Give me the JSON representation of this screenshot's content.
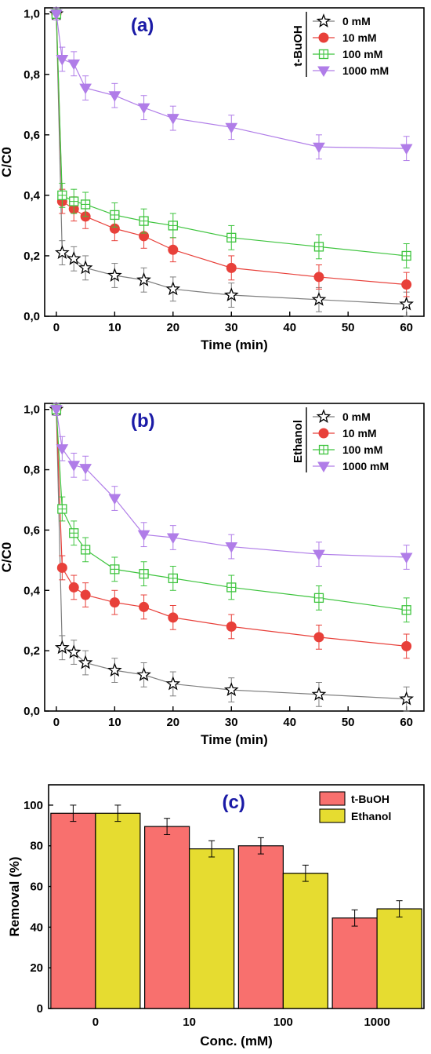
{
  "chart_data": [
    {
      "type": "line",
      "panel_label": "(a)",
      "xlabel": "Time (min)",
      "ylabel": "C/C0",
      "xlim": [
        -2,
        63
      ],
      "ylim": [
        0,
        1.02
      ],
      "xticks": [
        "0",
        "10",
        "20",
        "30",
        "40",
        "50",
        "60"
      ],
      "xtick_values": [
        0,
        10,
        20,
        30,
        40,
        50,
        60
      ],
      "yticks": [
        "0,0",
        "0,2",
        "0,4",
        "0,6",
        "0,8",
        "1,0"
      ],
      "ytick_values": [
        0,
        0.2,
        0.4,
        0.6,
        0.8,
        1.0
      ],
      "legend_group": "t-BuOH",
      "legend_position": "top-right",
      "grid": false,
      "x": [
        0,
        1,
        3,
        5,
        10,
        15,
        20,
        30,
        45,
        60
      ],
      "series": [
        {
          "name": "0 mM",
          "marker": "star",
          "color": "#000000",
          "line_color": "#7f7f7f",
          "values": [
            1.0,
            0.21,
            0.19,
            0.16,
            0.135,
            0.12,
            0.09,
            0.07,
            0.055,
            0.04
          ],
          "errors": [
            0.02,
            0.04,
            0.04,
            0.04,
            0.04,
            0.04,
            0.04,
            0.04,
            0.04,
            0.04
          ]
        },
        {
          "name": "10 mM",
          "marker": "circle",
          "color": "#e8403a",
          "line_color": "#e8403a",
          "values": [
            1.0,
            0.38,
            0.355,
            0.33,
            0.29,
            0.265,
            0.22,
            0.16,
            0.13,
            0.105
          ],
          "errors": [
            0.02,
            0.04,
            0.04,
            0.04,
            0.04,
            0.04,
            0.04,
            0.04,
            0.04,
            0.04
          ]
        },
        {
          "name": "100 mM",
          "marker": "square-cross",
          "color": "#3ec43e",
          "line_color": "#3ec43e",
          "values": [
            1.0,
            0.4,
            0.38,
            0.37,
            0.335,
            0.315,
            0.3,
            0.26,
            0.23,
            0.2
          ],
          "errors": [
            0.02,
            0.04,
            0.04,
            0.04,
            0.04,
            0.04,
            0.04,
            0.04,
            0.04,
            0.04
          ]
        },
        {
          "name": "1000 mM",
          "marker": "triangle-down",
          "color": "#b07de8",
          "line_color": "#b07de8",
          "values": [
            1.0,
            0.85,
            0.835,
            0.755,
            0.73,
            0.69,
            0.655,
            0.625,
            0.56,
            0.555
          ],
          "errors": [
            0.02,
            0.04,
            0.04,
            0.04,
            0.04,
            0.04,
            0.04,
            0.04,
            0.04,
            0.04
          ]
        }
      ]
    },
    {
      "type": "line",
      "panel_label": "(b)",
      "xlabel": "Time (min)",
      "ylabel": "C/C0",
      "xlim": [
        -2,
        63
      ],
      "ylim": [
        0,
        1.02
      ],
      "xticks": [
        "0",
        "10",
        "20",
        "30",
        "40",
        "50",
        "60"
      ],
      "xtick_values": [
        0,
        10,
        20,
        30,
        40,
        50,
        60
      ],
      "yticks": [
        "0,0",
        "0,2",
        "0,4",
        "0,6",
        "0,8",
        "1,0"
      ],
      "ytick_values": [
        0,
        0.2,
        0.4,
        0.6,
        0.8,
        1.0
      ],
      "legend_group": "Ethanol",
      "legend_position": "top-right",
      "grid": false,
      "x": [
        0,
        1,
        3,
        5,
        10,
        15,
        20,
        30,
        45,
        60
      ],
      "series": [
        {
          "name": "0 mM",
          "marker": "star",
          "color": "#000000",
          "line_color": "#7f7f7f",
          "values": [
            1.0,
            0.21,
            0.195,
            0.16,
            0.135,
            0.12,
            0.09,
            0.07,
            0.055,
            0.04
          ],
          "errors": [
            0.02,
            0.04,
            0.04,
            0.04,
            0.04,
            0.04,
            0.04,
            0.04,
            0.04,
            0.04
          ]
        },
        {
          "name": "10 mM",
          "marker": "circle",
          "color": "#e8403a",
          "line_color": "#e8403a",
          "values": [
            1.0,
            0.475,
            0.41,
            0.385,
            0.36,
            0.345,
            0.31,
            0.28,
            0.245,
            0.215
          ],
          "errors": [
            0.02,
            0.04,
            0.04,
            0.04,
            0.04,
            0.04,
            0.04,
            0.04,
            0.04,
            0.04
          ]
        },
        {
          "name": "100 mM",
          "marker": "square-cross",
          "color": "#3ec43e",
          "line_color": "#3ec43e",
          "values": [
            1.0,
            0.67,
            0.59,
            0.535,
            0.47,
            0.455,
            0.44,
            0.41,
            0.375,
            0.335
          ],
          "errors": [
            0.02,
            0.04,
            0.04,
            0.04,
            0.04,
            0.04,
            0.04,
            0.04,
            0.04,
            0.04
          ]
        },
        {
          "name": "1000 mM",
          "marker": "triangle-down",
          "color": "#b07de8",
          "line_color": "#b07de8",
          "values": [
            1.0,
            0.87,
            0.815,
            0.805,
            0.705,
            0.585,
            0.575,
            0.545,
            0.52,
            0.51
          ],
          "errors": [
            0.02,
            0.04,
            0.04,
            0.04,
            0.04,
            0.04,
            0.04,
            0.04,
            0.04,
            0.04
          ]
        }
      ]
    },
    {
      "type": "bar",
      "panel_label": "(c)",
      "xlabel": "Conc. (mM)",
      "ylabel": "Removal (%)",
      "ylim": [
        0,
        110
      ],
      "yticks": [
        "0",
        "20",
        "40",
        "60",
        "80",
        "100"
      ],
      "ytick_values": [
        0,
        20,
        40,
        60,
        80,
        100
      ],
      "categories": [
        "0",
        "10",
        "100",
        "1000"
      ],
      "legend_position": "top-right",
      "grid": false,
      "series": [
        {
          "name": "t-BuOH",
          "color": "#f8706e",
          "values": [
            96,
            89.5,
            80,
            44.5
          ],
          "errors": [
            4,
            4,
            4,
            4
          ]
        },
        {
          "name": "Ethanol",
          "color": "#e6dc30",
          "values": [
            96,
            78.5,
            66.5,
            49
          ],
          "errors": [
            4,
            4,
            4,
            4
          ]
        }
      ]
    }
  ]
}
